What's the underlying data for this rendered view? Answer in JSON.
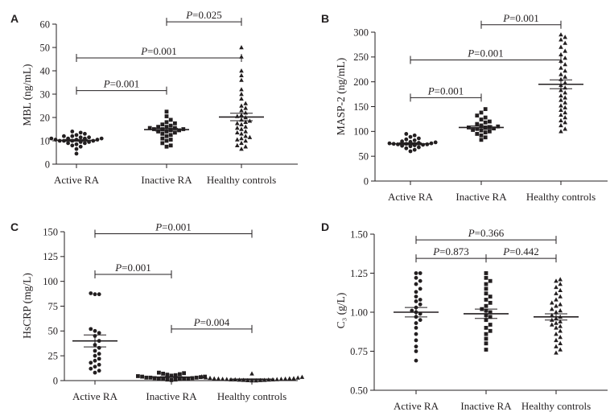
{
  "chart_data": [
    {
      "panel": "A",
      "type": "scatter",
      "ylabel": "MBL (ng/mL)",
      "ylim": [
        0,
        60
      ],
      "yticks": [
        0,
        10,
        20,
        30,
        40,
        50,
        60
      ],
      "categories": [
        "Active RA",
        "Inactive RA",
        "Healthy controls"
      ],
      "marker_shapes": [
        "circle",
        "square",
        "triangle"
      ],
      "series": [
        {
          "values": [
            4.5,
            6.5,
            7.5,
            8,
            8.5,
            9,
            9,
            9.5,
            9.5,
            10,
            10,
            10,
            10,
            10.5,
            10.5,
            10.5,
            11,
            11,
            11,
            11,
            11.5,
            11.5,
            12,
            12,
            12.5,
            13,
            13.5,
            14
          ],
          "mean": 10.2,
          "sem": 0.4
        },
        {
          "values": [
            7.5,
            8,
            9,
            10,
            10.5,
            11,
            12,
            12.5,
            13,
            13.5,
            14,
            14,
            14.5,
            14.5,
            15,
            15,
            15,
            15.5,
            15.5,
            16,
            16,
            16.5,
            17,
            17.5,
            18,
            19,
            20.5,
            22.5
          ],
          "mean": 14.8,
          "sem": 0.6
        },
        {
          "values": [
            6.5,
            7.5,
            8,
            9,
            10,
            10.5,
            11,
            11.5,
            12,
            13,
            13.5,
            14,
            15,
            15.5,
            16,
            17,
            17.5,
            18,
            18.5,
            19,
            20,
            20.5,
            21,
            22,
            23,
            24,
            25,
            26,
            28,
            30,
            32,
            36,
            38,
            40,
            46,
            50
          ],
          "mean": 20.2,
          "sem": 1.6
        }
      ],
      "significance": [
        {
          "label": "P=0.001",
          "from": 0,
          "to": 1,
          "y": 31.5
        },
        {
          "label": "P=0.001",
          "from": 0,
          "to": 2,
          "y": 45.5
        },
        {
          "label": "P=0.025",
          "from": 1,
          "to": 2,
          "y": 61
        }
      ]
    },
    {
      "panel": "B",
      "type": "scatter",
      "ylabel": "MASP-2 (ng/mL)",
      "ylim": [
        0,
        300
      ],
      "yticks": [
        0,
        50,
        100,
        150,
        200,
        250,
        300
      ],
      "categories": [
        "Active RA",
        "Inactive RA",
        "Healthy controls"
      ],
      "marker_shapes": [
        "circle",
        "square",
        "triangle"
      ],
      "series": [
        {
          "values": [
            60,
            63,
            66,
            68,
            70,
            71,
            72,
            73,
            74,
            74,
            75,
            75,
            76,
            76,
            77,
            78,
            79,
            80,
            82,
            84,
            86,
            89,
            92,
            95
          ],
          "mean": 75,
          "sem": 2
        },
        {
          "values": [
            83,
            88,
            92,
            95,
            98,
            100,
            102,
            103,
            105,
            106,
            107,
            108,
            109,
            110,
            112,
            115,
            118,
            120,
            124,
            128,
            132,
            138,
            145
          ],
          "mean": 108,
          "sem": 3
        },
        {
          "values": [
            100,
            105,
            112,
            118,
            122,
            128,
            133,
            138,
            143,
            148,
            152,
            158,
            163,
            168,
            172,
            178,
            183,
            188,
            193,
            198,
            205,
            210,
            215,
            222,
            228,
            235,
            242,
            248,
            255,
            262,
            270,
            278,
            285,
            290,
            295
          ],
          "mean": 195,
          "sem": 9
        }
      ],
      "significance": [
        {
          "label": "P=0.001",
          "from": 0,
          "to": 1,
          "y": 168
        },
        {
          "label": "P=0.001",
          "from": 0,
          "to": 2,
          "y": 244
        },
        {
          "label": "P=0.001",
          "from": 1,
          "to": 2,
          "y": 315
        }
      ]
    },
    {
      "panel": "C",
      "type": "scatter",
      "ylabel": "HsCRP (mg/L)",
      "ylim": [
        0,
        150
      ],
      "yticks": [
        0,
        25,
        50,
        75,
        100,
        125,
        150
      ],
      "categories": [
        "Active RA",
        "Inactive RA",
        "Healthy controls"
      ],
      "marker_shapes": [
        "circle",
        "square",
        "triangle"
      ],
      "series": [
        {
          "values": [
            8,
            10,
            12,
            14,
            16,
            18,
            20,
            22,
            25,
            27,
            30,
            33,
            36,
            40,
            45,
            48,
            50,
            52,
            87,
            87,
            88
          ],
          "mean": 40,
          "sem": 6
        },
        {
          "values": [
            0.5,
            1,
            1,
            1.5,
            1.5,
            2,
            2,
            2,
            2.5,
            2.5,
            3,
            3,
            3,
            3.5,
            4,
            4,
            4.5,
            5,
            5.5,
            6,
            6.5,
            7,
            7.5,
            8
          ],
          "mean": 3.5,
          "sem": 0.5
        },
        {
          "values": [
            0,
            0,
            0.2,
            0.3,
            0.5,
            0.5,
            0.7,
            0.8,
            1,
            1,
            1,
            1.2,
            1.3,
            1.5,
            1.5,
            1.7,
            1.8,
            2,
            2,
            2.2,
            2.5,
            2.8,
            3,
            3.5,
            4,
            7
          ],
          "mean": 1.4,
          "sem": 0.3
        }
      ],
      "significance": [
        {
          "label": "P=0.001",
          "from": 0,
          "to": 1,
          "y": 107
        },
        {
          "label": "P=0.001",
          "from": 0,
          "to": 2,
          "y": 148
        },
        {
          "label": "P=0.004",
          "from": 1,
          "to": 2,
          "y": 52
        }
      ]
    },
    {
      "panel": "D",
      "type": "scatter",
      "ylabel": "C₃ (g/L)",
      "ylim": [
        0.5,
        1.5
      ],
      "yticks": [
        "0.50",
        "0.75",
        "1.00",
        "1.25",
        "1.50"
      ],
      "categories": [
        "Active RA",
        "Inactive RA",
        "Healthy controls"
      ],
      "marker_shapes": [
        "circle",
        "square",
        "triangle"
      ],
      "series": [
        {
          "values": [
            0.69,
            0.75,
            0.78,
            0.82,
            0.86,
            0.9,
            0.93,
            0.95,
            0.97,
            0.99,
            1.0,
            1.01,
            1.03,
            1.05,
            1.07,
            1.08,
            1.1,
            1.13,
            1.15,
            1.18,
            1.2,
            1.22,
            1.25,
            1.25
          ],
          "mean": 1.0,
          "sem": 0.03
        },
        {
          "values": [
            0.76,
            0.8,
            0.83,
            0.86,
            0.88,
            0.9,
            0.92,
            0.95,
            0.97,
            0.98,
            1.0,
            1.01,
            1.02,
            1.04,
            1.06,
            1.08,
            1.1,
            1.12,
            1.15,
            1.18,
            1.2,
            1.22,
            1.25
          ],
          "mean": 0.99,
          "sem": 0.03
        },
        {
          "values": [
            0.74,
            0.76,
            0.78,
            0.8,
            0.82,
            0.84,
            0.86,
            0.88,
            0.9,
            0.91,
            0.92,
            0.93,
            0.94,
            0.95,
            0.96,
            0.97,
            0.98,
            1.0,
            1.01,
            1.02,
            1.04,
            1.05,
            1.06,
            1.08,
            1.1,
            1.12,
            1.14,
            1.16,
            1.18,
            1.2,
            1.21
          ],
          "mean": 0.97,
          "sem": 0.02
        }
      ],
      "significance": [
        {
          "label": "P=0.873",
          "from": 0,
          "to": 1,
          "y": 1.345
        },
        {
          "label": "P=0.442",
          "from": 1,
          "to": 2,
          "y": 1.345
        },
        {
          "label": "P=0.366",
          "from": 0,
          "to": 2,
          "y": 1.463
        }
      ]
    }
  ]
}
